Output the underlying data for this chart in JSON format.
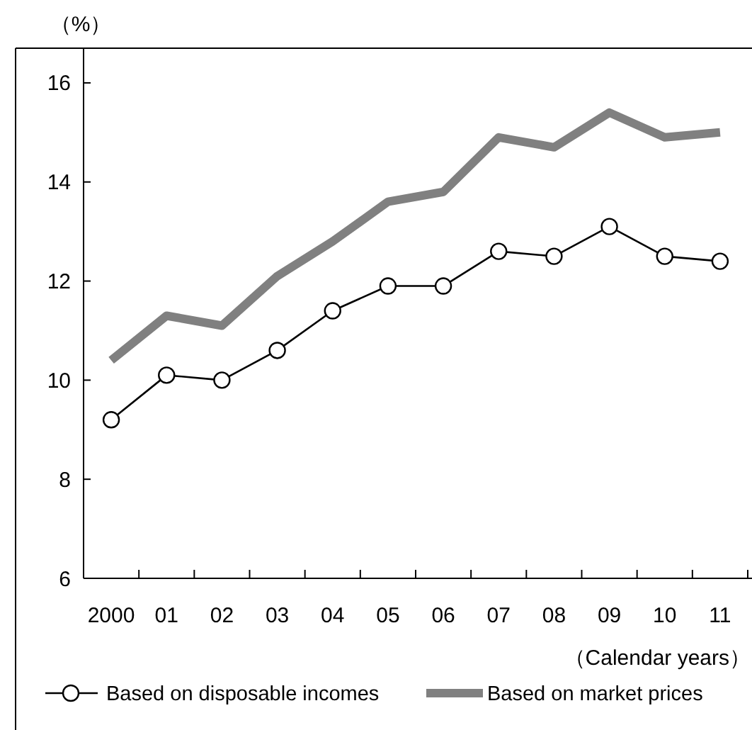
{
  "chart_data": {
    "type": "line",
    "ylabel": "（%）",
    "xlabel": "（Calendar years）",
    "categories": [
      "2000",
      "01",
      "02",
      "03",
      "04",
      "05",
      "06",
      "07",
      "08",
      "09",
      "10",
      "11"
    ],
    "ylim": [
      6,
      16.7
    ],
    "yticks": [
      6,
      8,
      10,
      12,
      14,
      16
    ],
    "grid": false,
    "legend": "bottom",
    "series": [
      {
        "name": "Based on disposable incomes",
        "color": "#000000",
        "marker": "circle",
        "values": [
          9.2,
          10.1,
          10.0,
          10.6,
          11.4,
          11.9,
          11.9,
          12.6,
          12.5,
          13.1,
          12.5,
          12.4
        ]
      },
      {
        "name": "Based on market prices",
        "color": "#808080",
        "marker": "none",
        "values": [
          10.4,
          11.3,
          11.1,
          12.1,
          12.8,
          13.6,
          13.8,
          14.9,
          14.7,
          15.4,
          14.9,
          15.0
        ]
      }
    ]
  }
}
